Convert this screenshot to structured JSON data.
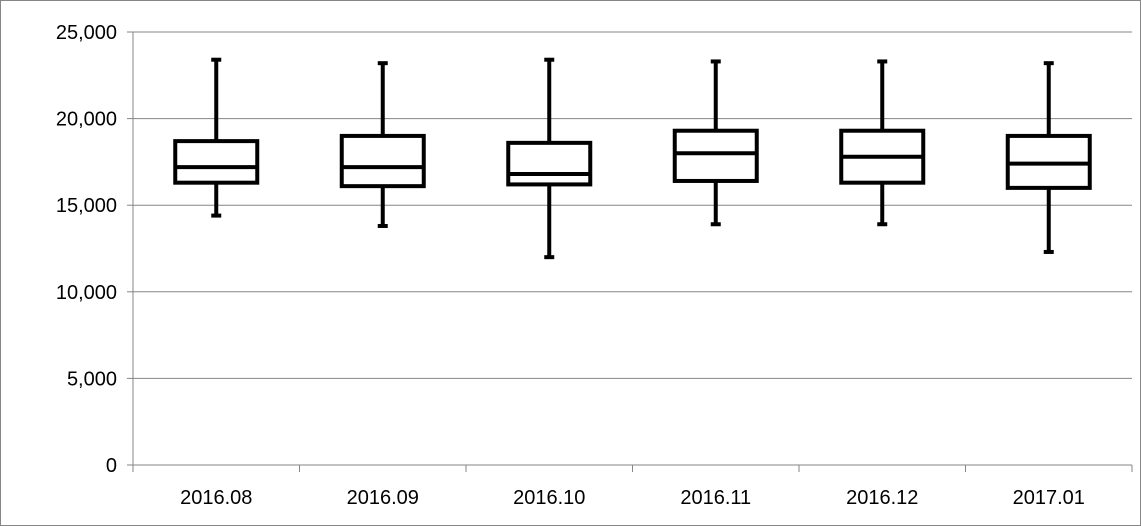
{
  "chart_data": {
    "type": "boxplot",
    "title": "",
    "xlabel": "",
    "ylabel": "",
    "ylim": [
      0,
      25000
    ],
    "y_ticks": [
      0,
      5000,
      10000,
      15000,
      20000,
      25000
    ],
    "y_tick_labels": [
      "0",
      "5,000",
      "10,000",
      "15,000",
      "20,000",
      "25,000"
    ],
    "grid": "horizontal",
    "legend": "none",
    "categories": [
      "2016.08",
      "2016.09",
      "2016.10",
      "2016.11",
      "2016.12",
      "2017.01"
    ],
    "boxes": [
      {
        "category": "2016.08",
        "min": 14400,
        "q1": 16300,
        "median": 17200,
        "q3": 18700,
        "max": 23400
      },
      {
        "category": "2016.09",
        "min": 13800,
        "q1": 16100,
        "median": 17200,
        "q3": 19000,
        "max": 23200
      },
      {
        "category": "2016.10",
        "min": 12000,
        "q1": 16200,
        "median": 16800,
        "q3": 18600,
        "max": 23400
      },
      {
        "category": "2016.11",
        "min": 13900,
        "q1": 16400,
        "median": 18000,
        "q3": 19300,
        "max": 23300
      },
      {
        "category": "2016.12",
        "min": 13900,
        "q1": 16300,
        "median": 17800,
        "q3": 19300,
        "max": 23300
      },
      {
        "category": "2017.01",
        "min": 12300,
        "q1": 16000,
        "median": 17400,
        "q3": 19000,
        "max": 23200
      }
    ],
    "colors": {
      "box_stroke": "#000000",
      "box_fill": "#ffffff",
      "grid": "#868686",
      "axis": "#868686",
      "frame": "#868686"
    }
  }
}
